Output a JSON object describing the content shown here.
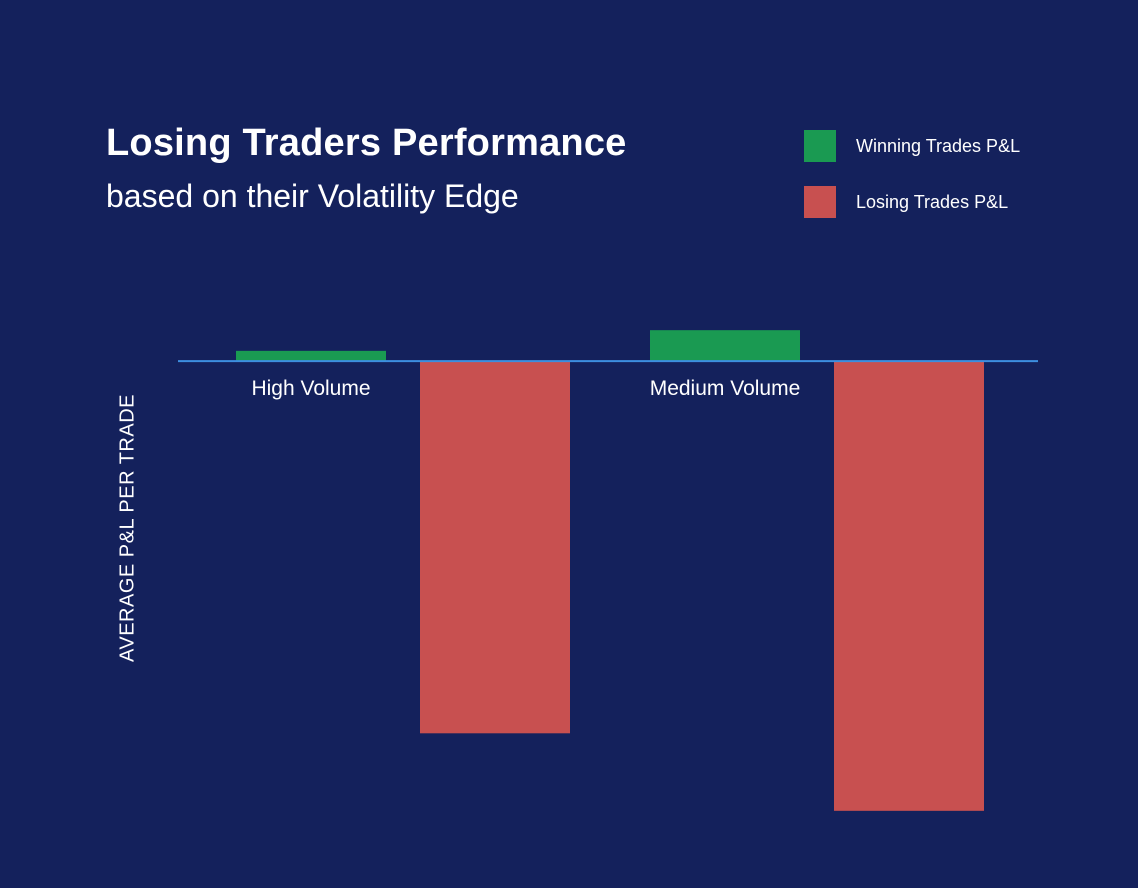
{
  "chart_data": {
    "type": "bar",
    "title": "Losing Traders Performance",
    "subtitle": "based on their Volatility Edge",
    "xlabel": "",
    "ylabel": "AVERAGE P&L PER TRADE",
    "categories": [
      "High Volume",
      "Medium Volume"
    ],
    "series": [
      {
        "name": "Winning Trades P&L",
        "color": "#1a9a52",
        "values": [
          1,
          3
        ]
      },
      {
        "name": "Losing Trades P&L",
        "color": "#c85050",
        "values": [
          -36,
          -43.5
        ]
      }
    ],
    "ylim": [
      -44,
      3.5
    ],
    "grid": false,
    "legend_position": "top-right"
  }
}
